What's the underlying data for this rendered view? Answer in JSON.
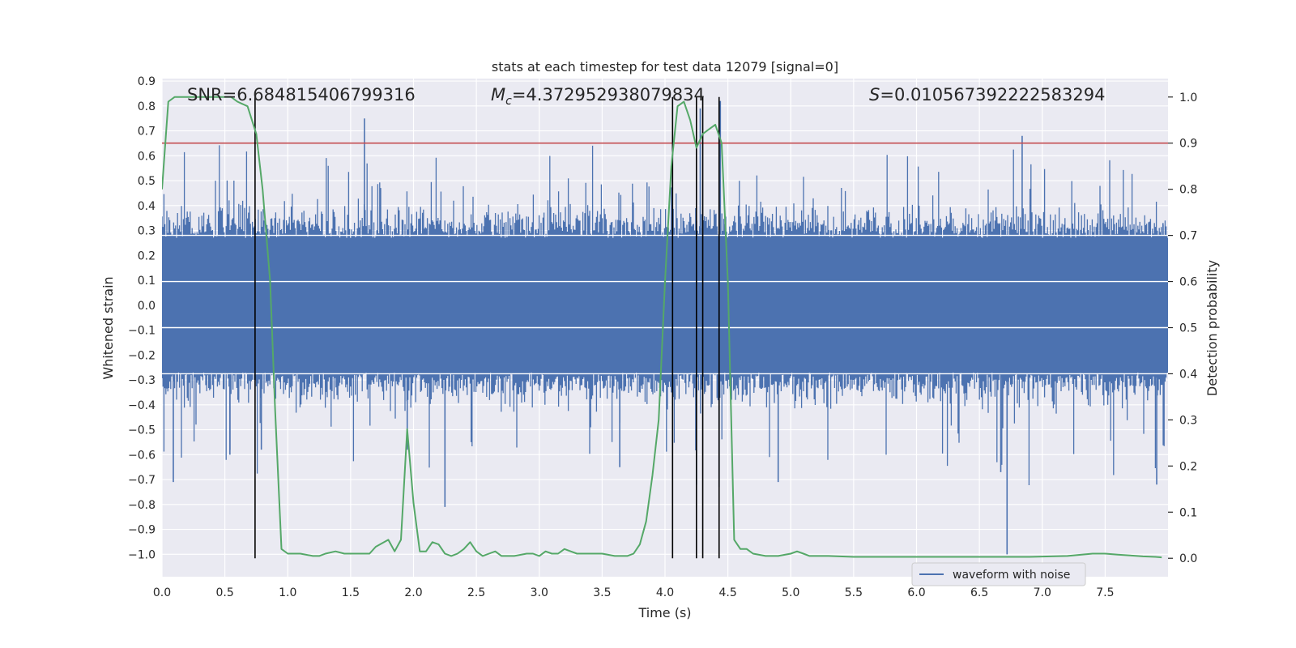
{
  "chart_data": {
    "type": "line",
    "title": "stats at each timestep for test data 12079 [signal=0]",
    "xlabel": "Time (s)",
    "ylabel": "Whitened strain",
    "y2label": "Detection probability",
    "xlim": [
      0.0,
      8.0
    ],
    "ylim": [
      -1.09,
      0.91
    ],
    "y2lim": [
      -0.04,
      1.04
    ],
    "xticks": [
      "0.0",
      "0.5",
      "1.0",
      "1.5",
      "2.0",
      "2.5",
      "3.0",
      "3.5",
      "4.0",
      "4.5",
      "5.0",
      "5.5",
      "6.0",
      "6.5",
      "7.0",
      "7.5"
    ],
    "xtick_values": [
      0.0,
      0.5,
      1.0,
      1.5,
      2.0,
      2.5,
      3.0,
      3.5,
      4.0,
      4.5,
      5.0,
      5.5,
      6.0,
      6.5,
      7.0,
      7.5
    ],
    "yticks": [
      "0.9",
      "0.8",
      "0.7",
      "0.6",
      "0.5",
      "0.4",
      "0.3",
      "0.2",
      "0.1",
      "0.0",
      "−0.1",
      "−0.2",
      "−0.3",
      "−0.4",
      "−0.5",
      "−0.6",
      "−0.7",
      "−0.8",
      "−0.9",
      "−1.0"
    ],
    "ytick_values": [
      0.9,
      0.8,
      0.7,
      0.6,
      0.5,
      0.4,
      0.3,
      0.2,
      0.1,
      0.0,
      -0.1,
      -0.2,
      -0.3,
      -0.4,
      -0.5,
      -0.6,
      -0.7,
      -0.8,
      -0.9,
      -1.0
    ],
    "y2ticks": [
      "1.0",
      "0.9",
      "0.8",
      "0.7",
      "0.6",
      "0.5",
      "0.4",
      "0.3",
      "0.2",
      "0.1",
      "0.0"
    ],
    "y2tick_values": [
      1.0,
      0.9,
      0.8,
      0.7,
      0.6,
      0.5,
      0.4,
      0.3,
      0.2,
      0.1,
      0.0
    ],
    "annotations": {
      "snr": "SNR=6.684815406799316",
      "mc_symbol": "M",
      "mc_sub": "c",
      "mc_value": "=4.372952938079834",
      "s_symbol": "S",
      "s_value": "=0.010567392222583294"
    },
    "legend": {
      "label": "waveform with noise",
      "placement": "lower-right"
    },
    "threshold": {
      "name": "threshold",
      "y2": 0.9,
      "color": "#c44e52"
    },
    "vlines": [
      0.74,
      4.06,
      4.25,
      4.3,
      4.43
    ],
    "series": [
      {
        "name": "waveform with noise",
        "color": "#4c72b0",
        "envelope_typical": 0.27,
        "envelope_max": 0.6,
        "outlier_spikes": [
          {
            "x": 0.09,
            "y": -0.71
          },
          {
            "x": 0.54,
            "y": -0.6
          },
          {
            "x": 0.79,
            "y": -0.58
          },
          {
            "x": 1.61,
            "y": 0.75
          },
          {
            "x": 1.95,
            "y": -0.58
          },
          {
            "x": 2.25,
            "y": -0.81
          },
          {
            "x": 3.64,
            "y": -0.65
          },
          {
            "x": 4.25,
            "y": -0.72
          },
          {
            "x": 4.28,
            "y": 0.79
          },
          {
            "x": 4.43,
            "y": -0.73
          },
          {
            "x": 4.44,
            "y": 0.82
          },
          {
            "x": 4.9,
            "y": -0.71
          },
          {
            "x": 6.67,
            "y": -0.67
          },
          {
            "x": 6.72,
            "y": -1.0
          },
          {
            "x": 6.84,
            "y": 0.68
          },
          {
            "x": 7.91,
            "y": -0.72
          },
          {
            "x": 7.96,
            "y": 0.33
          }
        ]
      },
      {
        "name": "detection probability",
        "color": "#55a868",
        "axis": "right",
        "x": [
          0.0,
          0.05,
          0.1,
          0.2,
          0.3,
          0.4,
          0.5,
          0.55,
          0.6,
          0.68,
          0.75,
          0.8,
          0.86,
          0.9,
          0.95,
          1.0,
          1.1,
          1.2,
          1.25,
          1.3,
          1.38,
          1.45,
          1.55,
          1.65,
          1.7,
          1.8,
          1.85,
          1.9,
          1.95,
          2.0,
          2.05,
          2.1,
          2.15,
          2.2,
          2.25,
          2.3,
          2.35,
          2.4,
          2.45,
          2.5,
          2.55,
          2.6,
          2.65,
          2.7,
          2.8,
          2.9,
          2.95,
          3.0,
          3.05,
          3.1,
          3.15,
          3.2,
          3.25,
          3.3,
          3.4,
          3.5,
          3.6,
          3.7,
          3.75,
          3.8,
          3.85,
          3.9,
          3.95,
          4.0,
          4.05,
          4.1,
          4.15,
          4.2,
          4.25,
          4.3,
          4.35,
          4.4,
          4.45,
          4.5,
          4.55,
          4.6,
          4.65,
          4.7,
          4.8,
          4.9,
          5.0,
          5.05,
          5.1,
          5.15,
          5.2,
          5.3,
          5.5,
          5.7,
          6.0,
          6.2,
          6.5,
          6.7,
          6.9,
          7.2,
          7.4,
          7.5,
          7.6,
          7.7,
          7.8,
          7.9,
          7.95
        ],
        "y": [
          0.8,
          0.99,
          1.0,
          1.0,
          1.0,
          1.0,
          1.0,
          1.0,
          0.99,
          0.98,
          0.92,
          0.8,
          0.6,
          0.32,
          0.02,
          0.01,
          0.01,
          0.005,
          0.005,
          0.01,
          0.015,
          0.01,
          0.01,
          0.01,
          0.025,
          0.04,
          0.015,
          0.04,
          0.28,
          0.12,
          0.015,
          0.015,
          0.035,
          0.03,
          0.01,
          0.005,
          0.01,
          0.02,
          0.035,
          0.015,
          0.005,
          0.01,
          0.015,
          0.005,
          0.005,
          0.01,
          0.01,
          0.005,
          0.015,
          0.01,
          0.01,
          0.02,
          0.015,
          0.01,
          0.01,
          0.01,
          0.005,
          0.005,
          0.01,
          0.03,
          0.08,
          0.18,
          0.3,
          0.6,
          0.85,
          0.98,
          0.99,
          0.95,
          0.89,
          0.92,
          0.93,
          0.94,
          0.9,
          0.6,
          0.04,
          0.02,
          0.02,
          0.01,
          0.005,
          0.005,
          0.01,
          0.015,
          0.01,
          0.005,
          0.005,
          0.005,
          0.003,
          0.003,
          0.003,
          0.003,
          0.003,
          0.003,
          0.003,
          0.005,
          0.01,
          0.01,
          0.008,
          0.006,
          0.004,
          0.003,
          0.002
        ]
      }
    ]
  }
}
